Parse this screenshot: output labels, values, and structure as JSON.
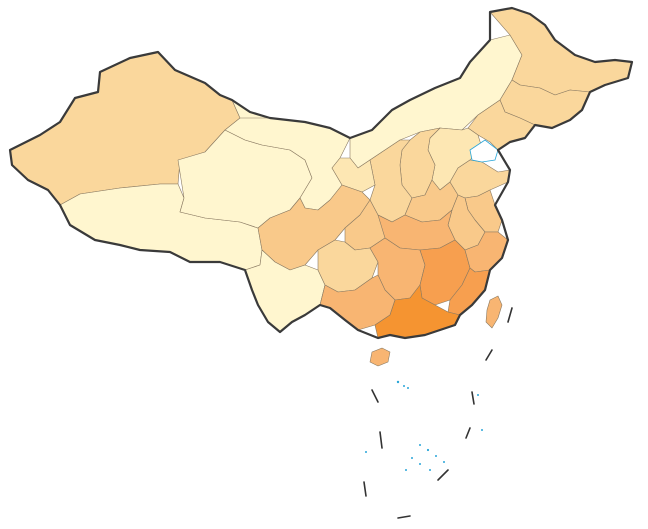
{
  "palette": {
    "lightest": "#fff6cf",
    "light": "#fde7b3",
    "mid_light": "#fad79c",
    "mid": "#f9c98a",
    "mid_dark": "#f8b572",
    "dark": "#f79f4f",
    "darkest": "#f59431",
    "coast": "#3a3a3a",
    "water_outline": "#2aa6d8"
  },
  "regions": [
    {
      "id": "xinjiang",
      "level": "mid_light"
    },
    {
      "id": "tibet",
      "level": "lightest"
    },
    {
      "id": "qinghai",
      "level": "lightest"
    },
    {
      "id": "gansu",
      "level": "lightest"
    },
    {
      "id": "inner-mongolia",
      "level": "lightest"
    },
    {
      "id": "heilongjiang",
      "level": "mid_light"
    },
    {
      "id": "jilin",
      "level": "mid_light"
    },
    {
      "id": "liaoning",
      "level": "mid_light"
    },
    {
      "id": "hebei",
      "level": "light"
    },
    {
      "id": "shanxi",
      "level": "mid_light"
    },
    {
      "id": "shaanxi",
      "level": "mid_light"
    },
    {
      "id": "ningxia",
      "level": "light"
    },
    {
      "id": "sichuan",
      "level": "mid"
    },
    {
      "id": "yunnan",
      "level": "lightest"
    },
    {
      "id": "guizhou",
      "level": "mid_light"
    },
    {
      "id": "chongqing",
      "level": "mid"
    },
    {
      "id": "henan",
      "level": "mid"
    },
    {
      "id": "shandong",
      "level": "mid_light"
    },
    {
      "id": "jiangsu",
      "level": "mid"
    },
    {
      "id": "anhui",
      "level": "mid"
    },
    {
      "id": "hubei",
      "level": "mid_dark"
    },
    {
      "id": "hunan",
      "level": "mid_dark"
    },
    {
      "id": "jiangxi",
      "level": "dark"
    },
    {
      "id": "zhejiang",
      "level": "mid_dark"
    },
    {
      "id": "fujian",
      "level": "dark"
    },
    {
      "id": "guangxi",
      "level": "mid_dark"
    },
    {
      "id": "guangdong",
      "level": "darkest"
    },
    {
      "id": "hainan",
      "level": "mid_dark"
    },
    {
      "id": "taiwan",
      "level": "mid_dark"
    }
  ]
}
